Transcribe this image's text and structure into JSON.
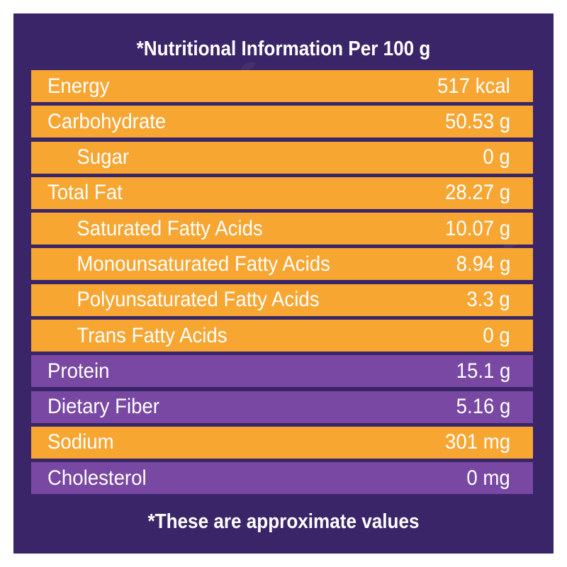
{
  "title": "*Nutritional Information Per 100 g",
  "rows": [
    {
      "label": "Energy",
      "value": "517 kcal",
      "color": "#f7a632",
      "indent": false
    },
    {
      "label": "Carbohydrate",
      "value": "50.53 g",
      "color": "#f7a632",
      "indent": false
    },
    {
      "label": "Sugar",
      "value": "0 g",
      "color": "#f7a632",
      "indent": true
    },
    {
      "label": "Total Fat",
      "value": "28.27 g",
      "color": "#f7a632",
      "indent": false
    },
    {
      "label": "Saturated Fatty Acids",
      "value": "10.07 g",
      "color": "#f7a632",
      "indent": true
    },
    {
      "label": "Monounsaturated Fatty Acids",
      "value": "8.94 g",
      "color": "#f7a632",
      "indent": true
    },
    {
      "label": "Polyunsaturated Fatty Acids",
      "value": "3.3 g",
      "color": "#f7a632",
      "indent": true
    },
    {
      "label": "Trans Fatty Acids",
      "value": "0 g",
      "color": "#f7a632",
      "indent": true
    },
    {
      "label": "Protein",
      "value": "15.1 g",
      "color": "#7848a3",
      "indent": false
    },
    {
      "label": "Dietary Fiber",
      "value": "5.16 g",
      "color": "#7848a3",
      "indent": false
    },
    {
      "label": "Sodium",
      "value": "301 mg",
      "color": "#f7a632",
      "indent": false
    },
    {
      "label": "Cholesterol",
      "value": "0 mg",
      "color": "#7848a3",
      "indent": false
    }
  ],
  "footer": "*These are approximate values",
  "colors": {
    "background": "#3a2568",
    "orange": "#f7a632",
    "purple": "#7848a3",
    "text": "#ffffff"
  }
}
